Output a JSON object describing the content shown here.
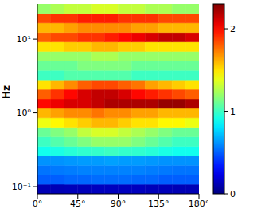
{
  "chart_data": {
    "type": "heatmap",
    "y_label": "Hz",
    "log": "y",
    "xlim": [
      0,
      180
    ],
    "xticks": [
      {
        "value": 0,
        "label": "0°"
      },
      {
        "value": 45,
        "label": "45°"
      },
      {
        "value": 90,
        "label": "90°"
      },
      {
        "value": 135,
        "label": "135°"
      },
      {
        "value": 180,
        "label": "180°"
      }
    ],
    "ylim": [
      0.08,
      30
    ],
    "yticks": [
      {
        "value": 0.1,
        "label": "10⁻¹"
      },
      {
        "value": 1,
        "label": "10⁰"
      },
      {
        "value": 10,
        "label": "10¹"
      }
    ],
    "x_edges": [
      0,
      15,
      30,
      45,
      60,
      75,
      90,
      105,
      120,
      135,
      150,
      165,
      180
    ],
    "y_edges": [
      0.08,
      0.1076,
      0.1447,
      0.1946,
      0.2617,
      0.352,
      0.4735,
      0.6368,
      0.8564,
      1.152,
      1.549,
      2.084,
      2.803,
      3.77,
      5.07,
      6.82,
      9.17,
      12.33,
      16.59,
      22.31,
      30
    ],
    "cells": [
      [
        0.12,
        0.12,
        0.13,
        0.13,
        0.14,
        0.14,
        0.14,
        0.14,
        0.13,
        0.13,
        0.12,
        0.12
      ],
      [
        0.5,
        0.5,
        0.52,
        0.52,
        0.53,
        0.53,
        0.53,
        0.52,
        0.52,
        0.5,
        0.5,
        0.5
      ],
      [
        0.55,
        0.56,
        0.57,
        0.58,
        0.58,
        0.58,
        0.58,
        0.58,
        0.57,
        0.56,
        0.55,
        0.55
      ],
      [
        0.62,
        0.62,
        0.63,
        0.64,
        0.64,
        0.65,
        0.64,
        0.64,
        0.63,
        0.62,
        0.62,
        0.62
      ],
      [
        0.9,
        0.92,
        0.95,
        0.97,
        0.98,
        1.0,
        0.98,
        0.97,
        0.95,
        0.92,
        0.9,
        0.9
      ],
      [
        1.0,
        1.05,
        1.1,
        1.15,
        1.2,
        1.2,
        1.2,
        1.15,
        1.1,
        1.05,
        1.0,
        1.0
      ],
      [
        1.1,
        1.15,
        1.2,
        1.3,
        1.35,
        1.35,
        1.3,
        1.25,
        1.2,
        1.15,
        1.1,
        1.1
      ],
      [
        1.4,
        1.45,
        1.5,
        1.55,
        1.6,
        1.6,
        1.55,
        1.5,
        1.5,
        1.45,
        1.45,
        1.4
      ],
      [
        1.6,
        1.65,
        1.7,
        1.7,
        1.75,
        1.7,
        1.7,
        1.65,
        1.65,
        1.6,
        1.6,
        1.6
      ],
      [
        2.0,
        2.05,
        2.1,
        2.1,
        2.15,
        2.2,
        2.2,
        2.2,
        2.2,
        2.25,
        2.25,
        2.2
      ],
      [
        1.8,
        1.9,
        2.0,
        2.1,
        2.15,
        2.15,
        2.1,
        2.0,
        1.95,
        1.9,
        1.85,
        1.8
      ],
      [
        1.5,
        1.6,
        1.7,
        1.8,
        1.85,
        1.85,
        1.8,
        1.75,
        1.65,
        1.6,
        1.55,
        1.5
      ],
      [
        1.0,
        1.0,
        1.05,
        1.05,
        1.05,
        1.05,
        1.05,
        1.0,
        1.0,
        1.0,
        1.0,
        1.0
      ],
      [
        1.1,
        1.1,
        1.1,
        1.15,
        1.15,
        1.15,
        1.15,
        1.1,
        1.1,
        1.1,
        1.1,
        1.1
      ],
      [
        1.2,
        1.2,
        1.2,
        1.2,
        1.25,
        1.25,
        1.2,
        1.2,
        1.2,
        1.2,
        1.2,
        1.2
      ],
      [
        1.5,
        1.5,
        1.55,
        1.55,
        1.6,
        1.6,
        1.55,
        1.55,
        1.5,
        1.5,
        1.5,
        1.5
      ],
      [
        1.8,
        1.85,
        1.85,
        1.9,
        1.9,
        1.95,
        2.0,
        2.05,
        2.1,
        2.15,
        2.15,
        2.1
      ],
      [
        1.6,
        1.6,
        1.65,
        1.7,
        1.7,
        1.7,
        1.7,
        1.65,
        1.65,
        1.6,
        1.6,
        1.6
      ],
      [
        1.85,
        1.9,
        1.9,
        1.95,
        1.95,
        1.95,
        1.9,
        1.9,
        1.9,
        1.85,
        1.85,
        1.85
      ],
      [
        1.2,
        1.25,
        1.3,
        1.3,
        1.35,
        1.35,
        1.3,
        1.3,
        1.25,
        1.25,
        1.2,
        1.2
      ]
    ],
    "colorbar": {
      "range": [
        0,
        2.3
      ],
      "ticks": [
        0,
        1,
        2
      ]
    }
  }
}
